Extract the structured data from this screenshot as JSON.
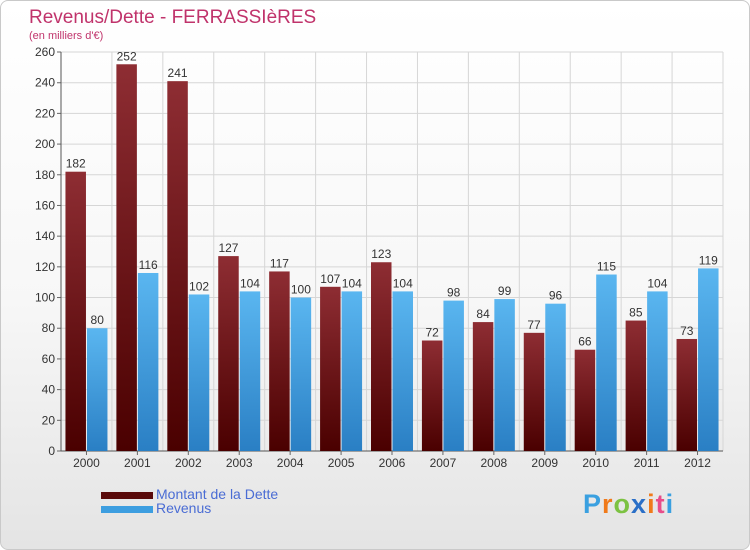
{
  "header": {
    "title": "Revenus/Dette - FERRASSIèRES",
    "subtitle": "(en milliers d'€)"
  },
  "chart_data": {
    "type": "bar",
    "title": "Revenus/Dette - FERRASSIèRES",
    "subtitle": "(en milliers d'€)",
    "categories": [
      "2000",
      "2001",
      "2002",
      "2003",
      "2004",
      "2005",
      "2006",
      "2007",
      "2008",
      "2009",
      "2010",
      "2011",
      "2012"
    ],
    "series": [
      {
        "name": "Montant de la Dette",
        "color": "#7a1a1a",
        "values": [
          182,
          252,
          241,
          127,
          117,
          107,
          123,
          72,
          84,
          77,
          66,
          85,
          73
        ]
      },
      {
        "name": "Revenus",
        "color": "#3d9ee0",
        "values": [
          80,
          116,
          102,
          104,
          100,
          104,
          104,
          98,
          99,
          96,
          115,
          104,
          119
        ]
      }
    ],
    "ylim": [
      0,
      260
    ],
    "yticks": [
      0,
      20,
      40,
      60,
      80,
      100,
      120,
      140,
      160,
      180,
      200,
      220,
      240,
      260
    ],
    "grid": true,
    "legend_position": "bottom-left",
    "xlabel": "",
    "ylabel": ""
  },
  "legend": {
    "items": [
      {
        "label": "Montant de la Dette",
        "color": "#5a0a0a"
      },
      {
        "label": "Revenus",
        "color": "#3d9ee0"
      }
    ]
  },
  "branding": {
    "letters": [
      "P",
      "r",
      "o",
      "x",
      "i",
      "t",
      "i"
    ],
    "colors": [
      "#3aa0e0",
      "#f07a1a",
      "#7cc242",
      "#2a6fc7",
      "#f07a1a",
      "#e84d8a",
      "#3aa0e0"
    ]
  }
}
